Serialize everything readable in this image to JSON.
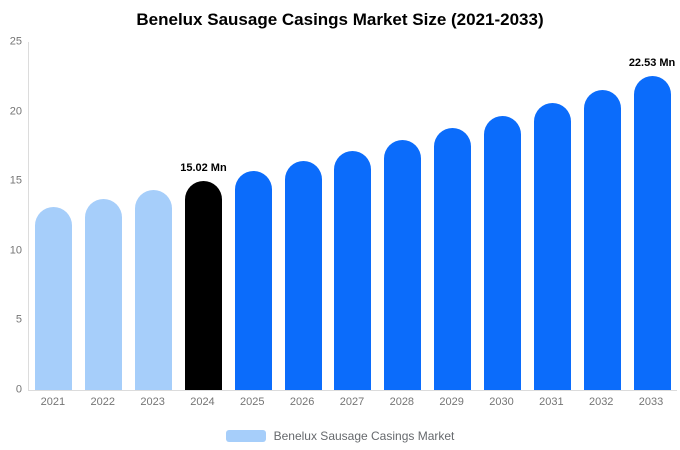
{
  "chart_data": {
    "type": "bar",
    "title": "Benelux Sausage Casings Market Size (2021-2033)",
    "categories": [
      "2021",
      "2022",
      "2023",
      "2024",
      "2025",
      "2026",
      "2027",
      "2028",
      "2029",
      "2030",
      "2031",
      "2032",
      "2033"
    ],
    "series": [
      {
        "name": "Benelux Sausage Casings Market",
        "values": [
          13.12,
          13.73,
          14.36,
          15.02,
          15.71,
          16.44,
          17.2,
          17.99,
          18.82,
          19.69,
          20.6,
          21.54,
          22.53
        ]
      }
    ],
    "point_labels": [
      "",
      "",
      "",
      "15.02 Mn",
      "",
      "",
      "",
      "",
      "",
      "",
      "",
      "",
      "22.53 Mn"
    ],
    "bar_colors": [
      "#A6CEFA",
      "#A6CEFA",
      "#A6CEFA",
      "#000000",
      "#0B6CFB",
      "#0B6CFB",
      "#0B6CFB",
      "#0B6CFB",
      "#0B6CFB",
      "#0B6CFB",
      "#0B6CFB",
      "#0B6CFB",
      "#0B6CFB"
    ],
    "xlabel": "",
    "ylabel": "",
    "ylim": [
      0,
      25
    ],
    "yticks": [
      "0",
      "5",
      "10",
      "15",
      "20",
      "25"
    ],
    "grid": false,
    "legend_position": "bottom"
  },
  "legend": {
    "label": "Benelux Sausage Casings Market",
    "swatch_color": "#A6CEFA"
  },
  "colors": {
    "historical_bar": "#A6CEFA",
    "base_year_bar": "#000000",
    "forecast_bar": "#0B6CFB",
    "axis_line": "#DCDCDC",
    "tick_text": "#757575",
    "legend_text": "#66696D",
    "title_text": "#000000"
  }
}
